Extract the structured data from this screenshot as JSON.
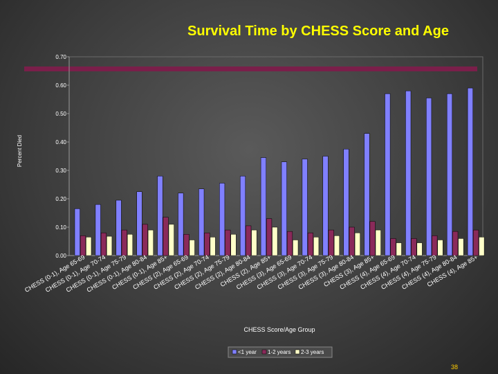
{
  "slide_number": "38",
  "chart_data": {
    "type": "bar",
    "title": "Survival Time by CHESS Score and Age",
    "xlabel": "CHESS Score/Age Group",
    "ylabel": "Percent Died",
    "ylim": [
      0,
      0.7
    ],
    "yticks": [
      "0.00",
      "0.10",
      "0.20",
      "0.30",
      "0.40",
      "0.50",
      "0.60",
      "0.70"
    ],
    "grid": false,
    "legend_position": "bottom",
    "categories": [
      "CHESS (0-1), Age 65-69",
      "CHESS (0-1), Age 70-74",
      "CHESS (0-1), Age 75-79",
      "CHESS (0-1), Age 80-84",
      "CHESS (0-1), Age 85+",
      "CHESS (2), Age 65-69",
      "CHESS (2), Age 70-74",
      "CHESS (2), Age 75-79",
      "CHESS (2), Age 80-84",
      "CHESS (2), Age 85+",
      "CHESS (3), Age 65-69",
      "CHESS (3), Age 70-74",
      "CHESS (3), Age 75-79",
      "CHESS (3), Age 80-84",
      "CHESS (3), Age 85+",
      "CHESS (4), Age 65-69",
      "CHESS (4), Age 70-74",
      "CHESS (4), Age 75-79",
      "CHESS (4), Age 80-84",
      "CHESS (4), Age 85+"
    ],
    "series": [
      {
        "name": "<1 year",
        "color": "#8080ff",
        "values": [
          0.165,
          0.18,
          0.195,
          0.225,
          0.28,
          0.22,
          0.235,
          0.255,
          0.28,
          0.345,
          0.33,
          0.34,
          0.35,
          0.375,
          0.43,
          0.57,
          0.58,
          0.555,
          0.57,
          0.59
        ]
      },
      {
        "name": "1-2 years",
        "color": "#8a2a5a",
        "values": [
          0.07,
          0.08,
          0.09,
          0.11,
          0.135,
          0.075,
          0.08,
          0.09,
          0.105,
          0.13,
          0.085,
          0.08,
          0.09,
          0.1,
          0.12,
          0.06,
          0.06,
          0.07,
          0.085,
          0.09
        ]
      },
      {
        "name": "2-3 years",
        "color": "#ffffc8",
        "values": [
          0.065,
          0.068,
          0.075,
          0.09,
          0.11,
          0.055,
          0.065,
          0.075,
          0.09,
          0.1,
          0.055,
          0.065,
          0.07,
          0.08,
          0.09,
          0.045,
          0.045,
          0.055,
          0.06,
          0.065
        ]
      }
    ]
  }
}
